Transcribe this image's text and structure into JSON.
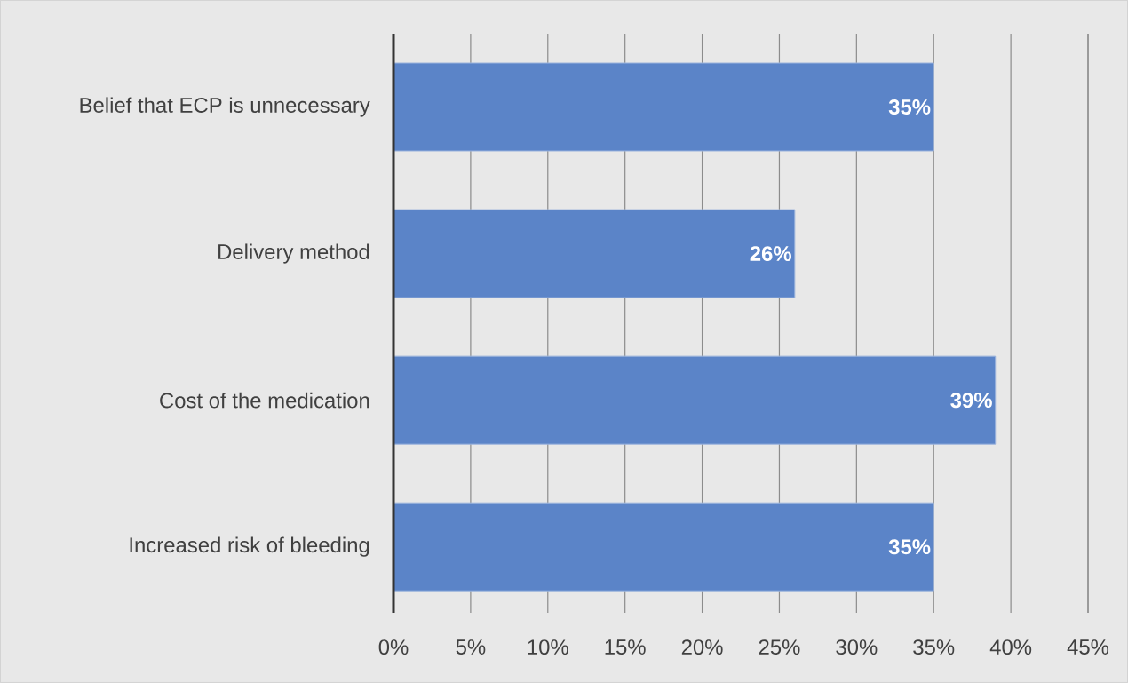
{
  "chart_data": {
    "type": "bar",
    "orientation": "horizontal",
    "categories": [
      "Belief that ECP is unnecessary",
      "Delivery method",
      "Cost of the medication",
      "Increased risk of bleeding"
    ],
    "values": [
      35,
      26,
      39,
      35
    ],
    "value_labels": [
      "35%",
      "26%",
      "39%",
      "35%"
    ],
    "color": "#5b84c8",
    "xlim": [
      0,
      45
    ],
    "xticks": [
      {
        "value": 0,
        "label": "0%"
      },
      {
        "value": 5,
        "label": "5%"
      },
      {
        "value": 10,
        "label": "10%"
      },
      {
        "value": 15,
        "label": "15%"
      },
      {
        "value": 20,
        "label": "20%"
      },
      {
        "value": 25,
        "label": "25%"
      },
      {
        "value": 30,
        "label": "30%"
      },
      {
        "value": 35,
        "label": "35%"
      },
      {
        "value": 40,
        "label": "40%"
      },
      {
        "value": 45,
        "label": "45%"
      }
    ],
    "grid": "x"
  }
}
